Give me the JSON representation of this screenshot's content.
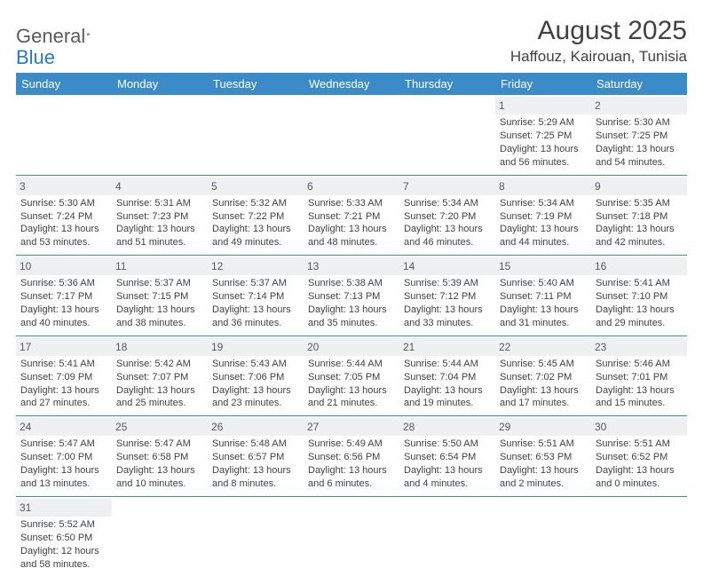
{
  "logo": {
    "text1": "General",
    "text2": "Blue"
  },
  "title": "August 2025",
  "location": "Haffouz, Kairouan, Tunisia",
  "colors": {
    "header_bg": "#3b8bc9",
    "header_fg": "#ffffff",
    "daynum_bg": "#eef0f2",
    "border": "#3b8bc9",
    "text": "#414141",
    "logo_gray": "#5a5a5a",
    "logo_blue": "#2a7ab8"
  },
  "weekdays": [
    "Sunday",
    "Monday",
    "Tuesday",
    "Wednesday",
    "Thursday",
    "Friday",
    "Saturday"
  ],
  "weeks": [
    [
      null,
      null,
      null,
      null,
      null,
      {
        "n": "1",
        "sr": "5:29 AM",
        "ss": "7:25 PM",
        "dl": "13 hours and 56 minutes."
      },
      {
        "n": "2",
        "sr": "5:30 AM",
        "ss": "7:25 PM",
        "dl": "13 hours and 54 minutes."
      }
    ],
    [
      {
        "n": "3",
        "sr": "5:30 AM",
        "ss": "7:24 PM",
        "dl": "13 hours and 53 minutes."
      },
      {
        "n": "4",
        "sr": "5:31 AM",
        "ss": "7:23 PM",
        "dl": "13 hours and 51 minutes."
      },
      {
        "n": "5",
        "sr": "5:32 AM",
        "ss": "7:22 PM",
        "dl": "13 hours and 49 minutes."
      },
      {
        "n": "6",
        "sr": "5:33 AM",
        "ss": "7:21 PM",
        "dl": "13 hours and 48 minutes."
      },
      {
        "n": "7",
        "sr": "5:34 AM",
        "ss": "7:20 PM",
        "dl": "13 hours and 46 minutes."
      },
      {
        "n": "8",
        "sr": "5:34 AM",
        "ss": "7:19 PM",
        "dl": "13 hours and 44 minutes."
      },
      {
        "n": "9",
        "sr": "5:35 AM",
        "ss": "7:18 PM",
        "dl": "13 hours and 42 minutes."
      }
    ],
    [
      {
        "n": "10",
        "sr": "5:36 AM",
        "ss": "7:17 PM",
        "dl": "13 hours and 40 minutes."
      },
      {
        "n": "11",
        "sr": "5:37 AM",
        "ss": "7:15 PM",
        "dl": "13 hours and 38 minutes."
      },
      {
        "n": "12",
        "sr": "5:37 AM",
        "ss": "7:14 PM",
        "dl": "13 hours and 36 minutes."
      },
      {
        "n": "13",
        "sr": "5:38 AM",
        "ss": "7:13 PM",
        "dl": "13 hours and 35 minutes."
      },
      {
        "n": "14",
        "sr": "5:39 AM",
        "ss": "7:12 PM",
        "dl": "13 hours and 33 minutes."
      },
      {
        "n": "15",
        "sr": "5:40 AM",
        "ss": "7:11 PM",
        "dl": "13 hours and 31 minutes."
      },
      {
        "n": "16",
        "sr": "5:41 AM",
        "ss": "7:10 PM",
        "dl": "13 hours and 29 minutes."
      }
    ],
    [
      {
        "n": "17",
        "sr": "5:41 AM",
        "ss": "7:09 PM",
        "dl": "13 hours and 27 minutes."
      },
      {
        "n": "18",
        "sr": "5:42 AM",
        "ss": "7:07 PM",
        "dl": "13 hours and 25 minutes."
      },
      {
        "n": "19",
        "sr": "5:43 AM",
        "ss": "7:06 PM",
        "dl": "13 hours and 23 minutes."
      },
      {
        "n": "20",
        "sr": "5:44 AM",
        "ss": "7:05 PM",
        "dl": "13 hours and 21 minutes."
      },
      {
        "n": "21",
        "sr": "5:44 AM",
        "ss": "7:04 PM",
        "dl": "13 hours and 19 minutes."
      },
      {
        "n": "22",
        "sr": "5:45 AM",
        "ss": "7:02 PM",
        "dl": "13 hours and 17 minutes."
      },
      {
        "n": "23",
        "sr": "5:46 AM",
        "ss": "7:01 PM",
        "dl": "13 hours and 15 minutes."
      }
    ],
    [
      {
        "n": "24",
        "sr": "5:47 AM",
        "ss": "7:00 PM",
        "dl": "13 hours and 13 minutes."
      },
      {
        "n": "25",
        "sr": "5:47 AM",
        "ss": "6:58 PM",
        "dl": "13 hours and 10 minutes."
      },
      {
        "n": "26",
        "sr": "5:48 AM",
        "ss": "6:57 PM",
        "dl": "13 hours and 8 minutes."
      },
      {
        "n": "27",
        "sr": "5:49 AM",
        "ss": "6:56 PM",
        "dl": "13 hours and 6 minutes."
      },
      {
        "n": "28",
        "sr": "5:50 AM",
        "ss": "6:54 PM",
        "dl": "13 hours and 4 minutes."
      },
      {
        "n": "29",
        "sr": "5:51 AM",
        "ss": "6:53 PM",
        "dl": "13 hours and 2 minutes."
      },
      {
        "n": "30",
        "sr": "5:51 AM",
        "ss": "6:52 PM",
        "dl": "13 hours and 0 minutes."
      }
    ],
    [
      {
        "n": "31",
        "sr": "5:52 AM",
        "ss": "6:50 PM",
        "dl": "12 hours and 58 minutes."
      },
      null,
      null,
      null,
      null,
      null,
      null
    ]
  ],
  "labels": {
    "sunrise": "Sunrise: ",
    "sunset": "Sunset: ",
    "daylight": "Daylight: "
  }
}
